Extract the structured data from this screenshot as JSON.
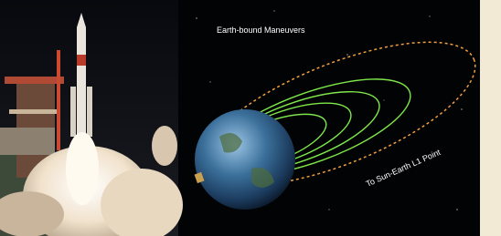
{
  "labels": {
    "maneuvers": "Earth-bound Maneuvers",
    "destination": "To Sun-Earth L1 Point"
  }
}
